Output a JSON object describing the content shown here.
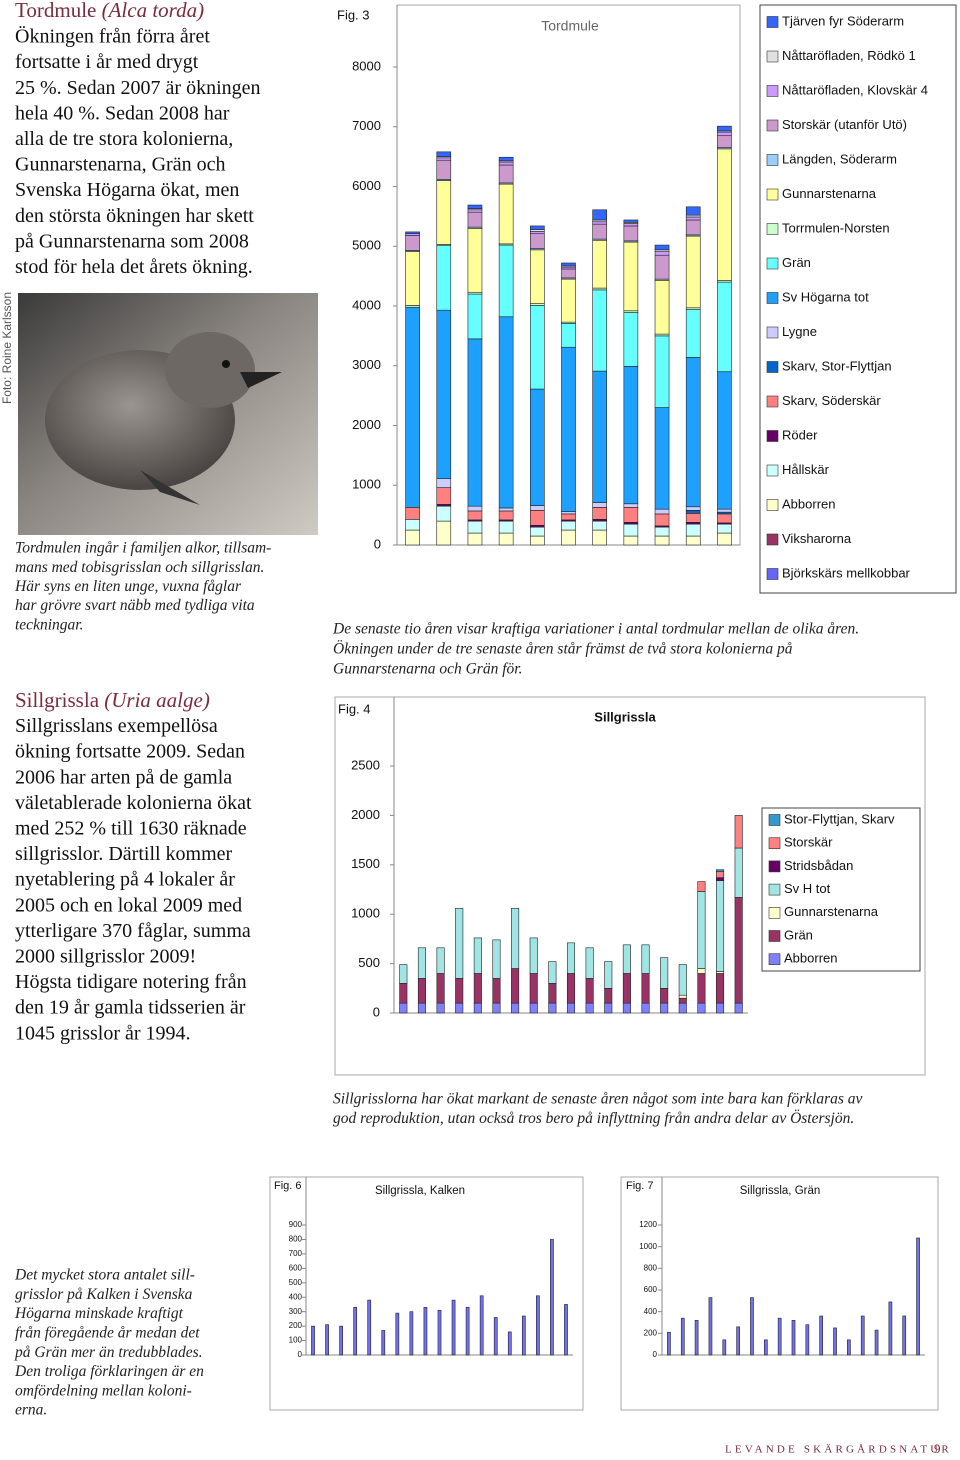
{
  "tordmule": {
    "name": "Tordmule",
    "latin": "(Alca torda)",
    "lines": [
      "Ökningen från förra året",
      "fortsatte i år med drygt",
      "25 %. Sedan 2007 är ökningen",
      "hela 40 %. Sedan 2008 har",
      "alla de tre stora kolonierna,",
      "Gunnarstenarna, Grän och",
      "Svenska Högarna ökat, men",
      "den största ökningen har skett",
      "på Gunnarstenarna som 2008",
      "stod för hela det årets ökning."
    ]
  },
  "photo": {
    "credit": "Foto: Roine Karlsson",
    "caption": [
      "Tordmulen ingår i familjen alkor, tillsam-",
      "mans med tobisgrisslan och sillgrisslan.",
      "Här syns en liten unge, vuxna fåglar",
      "har grövre svart näbb med tydliga vita",
      "teckningar."
    ]
  },
  "sillgrissla": {
    "name": "Sillgrissla",
    "latin": "(Uria aalge)",
    "lines": [
      "Sillgrisslans exempellösa",
      "ökning fortsatte 2009. Sedan",
      "2006 har arten på de gamla",
      "väletablerade kolonierna ökat",
      "med 252 % till 1630 räknade",
      "sillgrisslor. Därtill kommer",
      "nyetablering på 4 lokaler år",
      "2005 och en lokal 2009 med",
      "ytterligare 370 fåglar, summa",
      "2000 sillgrisslor 2009!",
      "Högsta tidigare notering från",
      "den 19 år gamla tidsserien är",
      "1045 grisslor år 1994."
    ]
  },
  "kalken_gran_caption": [
    "Det mycket stora antalet sill-",
    "grisslor på Kalken i Svenska",
    "Högarna minskade kraftigt",
    "från föregående år medan det",
    "på Grän mer än tredubblades.",
    "Den troliga förklaringen är en",
    "omfördelning mellan koloni-",
    "erna."
  ],
  "footer": {
    "text": "LEVANDE SKÄRGÅRDSNATUR",
    "page": "9"
  },
  "chart_data": [
    {
      "type": "bar",
      "stacked": true,
      "label": "Fig. 3",
      "title": "Tordmule",
      "caption": [
        "De senaste tio åren visar kraftiga variationer i antal tordmular mellan de olika åren.",
        "Ökningen under de tre senaste åren står främst de två stora kolonierna på",
        "Gunnarstenarna och Grän för."
      ],
      "categories": [
        null,
        null,
        null,
        null,
        null,
        null,
        null,
        null,
        null,
        null,
        null
      ],
      "ylim": [
        0,
        8000
      ],
      "yticks": [
        0,
        1000,
        2000,
        3000,
        4000,
        5000,
        6000,
        7000,
        8000
      ],
      "series": [
        {
          "name": "Tjärven fyr Söderarm",
          "color": "#3366ff",
          "values": [
            30,
            80,
            60,
            60,
            60,
            50,
            170,
            40,
            80,
            140,
            80
          ]
        },
        {
          "name": "Nåttaröfladen, Rödkö 1",
          "color": "#e0e0e0",
          "values": [
            0,
            20,
            20,
            20,
            30,
            20,
            30,
            20,
            30,
            30,
            20
          ]
        },
        {
          "name": "Nåttaröfladen, Klovskär 4",
          "color": "#cc99ff",
          "values": [
            30,
            40,
            40,
            50,
            40,
            30,
            40,
            40,
            60,
            50,
            60
          ]
        },
        {
          "name": "Storskär (utanför Utö)",
          "color": "#cc99cc",
          "values": [
            250,
            320,
            250,
            300,
            250,
            150,
            250,
            250,
            400,
            250,
            200
          ]
        },
        {
          "name": "Längden, Söderarm",
          "color": "#99ccff",
          "values": [
            20,
            20,
            20,
            20,
            20,
            20,
            20,
            20,
            20,
            20,
            20
          ]
        },
        {
          "name": "Gunnarstenarna",
          "color": "#ffff99",
          "values": [
            900,
            1070,
            1070,
            1000,
            900,
            720,
            800,
            1150,
            900,
            1200,
            2200
          ]
        },
        {
          "name": "Torrmulen-Norsten",
          "color": "#ccffcc",
          "values": [
            30,
            20,
            30,
            20,
            30,
            20,
            30,
            30,
            30,
            30,
            30
          ]
        },
        {
          "name": "Grän",
          "color": "#66ffff",
          "values": [
            0,
            1080,
            750,
            1200,
            1400,
            400,
            1360,
            900,
            1200,
            800,
            1500
          ]
        },
        {
          "name": "Sv Högarna tot",
          "color": "#1ea0ff",
          "values": [
            3350,
            2820,
            2800,
            3200,
            1950,
            2750,
            2200,
            2300,
            1700,
            2500,
            2300
          ]
        },
        {
          "name": "Lygne",
          "color": "#ccccff",
          "values": [
            0,
            150,
            80,
            50,
            80,
            40,
            80,
            60,
            80,
            60,
            50
          ]
        },
        {
          "name": "Skarv, Stor-Flyttjan",
          "color": "#0066cc",
          "values": [
            0,
            0,
            0,
            0,
            0,
            0,
            0,
            0,
            0,
            50,
            30
          ]
        },
        {
          "name": "Skarv, Söderskär",
          "color": "#ff8080",
          "values": [
            200,
            280,
            150,
            150,
            250,
            100,
            200,
            250,
            200,
            150,
            150
          ]
        },
        {
          "name": "Röder",
          "color": "#660066",
          "values": [
            0,
            30,
            20,
            20,
            30,
            20,
            30,
            30,
            20,
            30,
            20
          ]
        },
        {
          "name": "Hållskär",
          "color": "#ccffff",
          "values": [
            180,
            250,
            200,
            200,
            150,
            150,
            150,
            200,
            150,
            200,
            150
          ]
        },
        {
          "name": "Abborren",
          "color": "#ffffcc",
          "values": [
            250,
            400,
            200,
            200,
            150,
            250,
            250,
            150,
            150,
            150,
            200
          ]
        },
        {
          "name": "Viksharorna",
          "color": "#993366",
          "values": [
            0,
            0,
            0,
            0,
            0,
            0,
            0,
            0,
            0,
            0,
            0
          ]
        },
        {
          "name": "Björkskärs mellkobbar",
          "color": "#6666ff",
          "values": [
            0,
            0,
            0,
            0,
            0,
            0,
            0,
            0,
            0,
            0,
            0
          ]
        }
      ]
    },
    {
      "type": "bar",
      "stacked": true,
      "label": "Fig. 4",
      "title": "Sillgrissla",
      "caption": [
        "Sillgrisslorna har ökat markant de senaste åren något som inte bara kan förklaras av",
        "god reproduktion, utan också tros bero på inflyttning från andra delar av Östersjön."
      ],
      "categories": [
        null,
        null,
        null,
        null,
        null,
        null,
        null,
        null,
        null,
        null,
        null,
        null,
        null,
        null,
        null,
        null,
        null,
        null,
        null
      ],
      "ylim": [
        0,
        2500
      ],
      "yticks": [
        0,
        500,
        1000,
        1500,
        2000,
        2500
      ],
      "series": [
        {
          "name": "Stor-Flyttjan, Skarv",
          "color": "#3399cc",
          "values": [
            0,
            0,
            0,
            0,
            0,
            0,
            0,
            0,
            0,
            0,
            0,
            0,
            0,
            0,
            0,
            0,
            0,
            20,
            0
          ]
        },
        {
          "name": "Storskär",
          "color": "#ff8080",
          "values": [
            0,
            0,
            0,
            0,
            0,
            0,
            0,
            0,
            0,
            0,
            0,
            0,
            0,
            0,
            0,
            0,
            100,
            60,
            330
          ]
        },
        {
          "name": "Stridsbådan",
          "color": "#660066",
          "values": [
            0,
            0,
            0,
            0,
            0,
            0,
            0,
            0,
            0,
            0,
            0,
            0,
            0,
            0,
            0,
            0,
            0,
            30,
            0
          ]
        },
        {
          "name": "Sv H tot",
          "color": "#a0e4e4",
          "values": [
            190,
            310,
            260,
            710,
            360,
            390,
            610,
            360,
            220,
            310,
            310,
            270,
            290,
            290,
            310,
            310,
            780,
            920,
            500
          ]
        },
        {
          "name": "Gunnarstenarna",
          "color": "#ffffcc",
          "values": [
            0,
            0,
            0,
            0,
            0,
            0,
            0,
            0,
            0,
            0,
            0,
            0,
            0,
            0,
            0,
            30,
            50,
            20,
            0
          ]
        },
        {
          "name": "Grän",
          "color": "#993366",
          "values": [
            200,
            250,
            300,
            250,
            300,
            250,
            350,
            300,
            200,
            300,
            250,
            150,
            300,
            300,
            150,
            50,
            300,
            300,
            1070
          ]
        },
        {
          "name": "Abborren",
          "color": "#8080ff",
          "values": [
            100,
            100,
            100,
            100,
            100,
            100,
            100,
            100,
            100,
            100,
            100,
            100,
            100,
            100,
            100,
            100,
            100,
            100,
            100
          ]
        }
      ]
    },
    {
      "type": "bar",
      "label": "Fig. 6",
      "title": "Sillgrissla, Kalken",
      "color": "#7070f0",
      "categories": [
        null,
        null,
        null,
        null,
        null,
        null,
        null,
        null,
        null,
        null,
        null,
        null,
        null,
        null,
        null,
        null,
        null,
        null,
        null
      ],
      "values": [
        200,
        210,
        200,
        330,
        380,
        170,
        290,
        300,
        330,
        310,
        380,
        330,
        410,
        260,
        160,
        270,
        410,
        800,
        350
      ],
      "ylim": [
        0,
        900
      ],
      "yticks": [
        0,
        100,
        200,
        300,
        400,
        500,
        600,
        700,
        800,
        900
      ]
    },
    {
      "type": "bar",
      "label": "Fig. 7",
      "title": "Sillgrissla, Grän",
      "color": "#7070f0",
      "categories": [
        null,
        null,
        null,
        null,
        null,
        null,
        null,
        null,
        null,
        null,
        null,
        null,
        null,
        null,
        null,
        null,
        null,
        null,
        null
      ],
      "values": [
        210,
        340,
        320,
        530,
        140,
        260,
        530,
        140,
        340,
        320,
        280,
        360,
        250,
        140,
        360,
        230,
        490,
        360,
        1080
      ],
      "ylim": [
        0,
        1200
      ],
      "yticks": [
        0,
        200,
        400,
        600,
        800,
        1000,
        1200
      ]
    }
  ]
}
